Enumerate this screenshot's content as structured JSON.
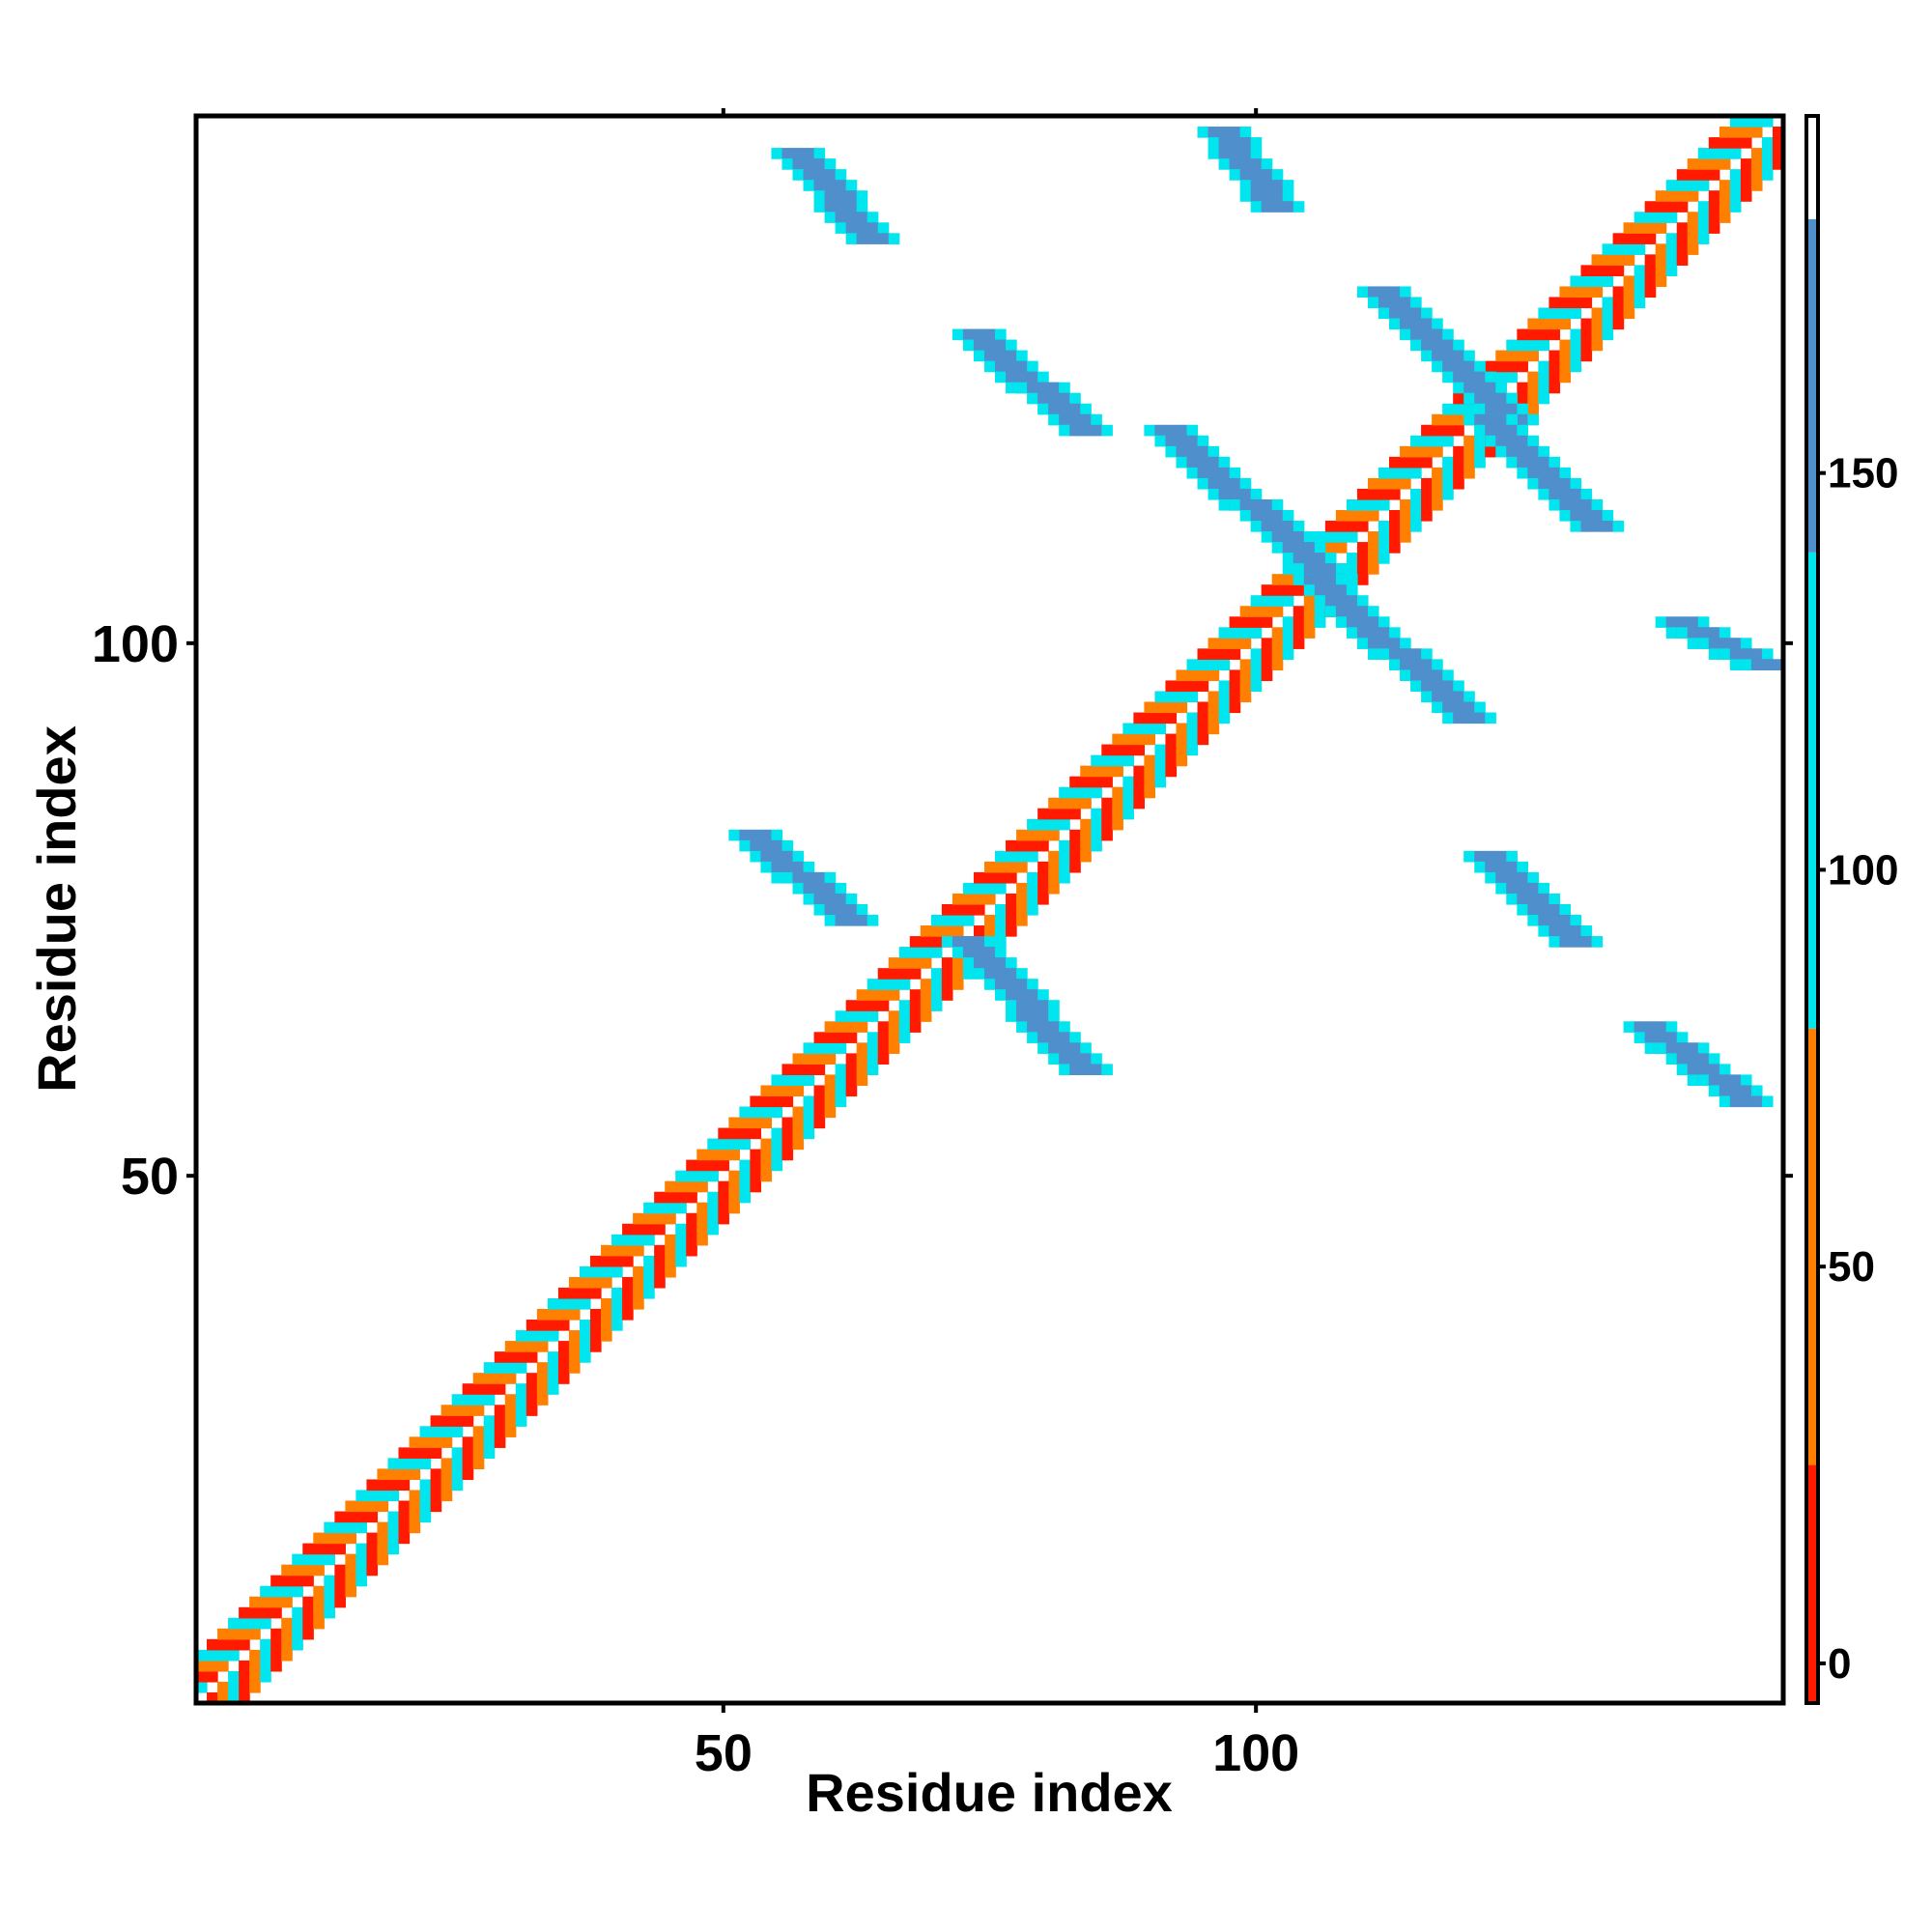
{
  "chart_data": {
    "type": "heatmap",
    "title": "",
    "xlabel": "Residue index",
    "ylabel": "Residue index",
    "xlim": [
      1,
      149
    ],
    "ylim": [
      1,
      149
    ],
    "x_ticks": [
      50,
      100
    ],
    "y_ticks": [
      50,
      100
    ],
    "grid": false,
    "legend": "right",
    "colorbar": {
      "ticks": [
        0,
        50,
        100,
        150
      ],
      "range": [
        -5,
        195
      ],
      "stops": [
        {
          "from": -5,
          "to": 25,
          "color": "#ff1a00"
        },
        {
          "from": 25,
          "to": 80,
          "color": "#ff8000"
        },
        {
          "from": 80,
          "to": 140,
          "color": "#00e5ee"
        },
        {
          "from": 140,
          "to": 182,
          "color": "#4f8fcc"
        },
        {
          "from": 182,
          "to": 195,
          "color": "#ffffff"
        }
      ]
    },
    "diagonal_band": {
      "from": 1,
      "to": 149,
      "pattern": [
        "#ff1a00",
        "#ff8000",
        "#00e5ee"
      ]
    },
    "regions": [
      {
        "x": [
          53,
          62
        ],
        "y": [
          74,
          82
        ],
        "slope": -1,
        "width": 5,
        "value": 120
      },
      {
        "x": [
          73,
          84
        ],
        "y": [
          60,
          72
        ],
        "slope": -1,
        "width": 5,
        "value": 120
      },
      {
        "x": [
          92,
          107
        ],
        "y": [
          106,
          120
        ],
        "slope": -1,
        "width": 5,
        "value": 120
      },
      {
        "x": [
          106,
          120
        ],
        "y": [
          93,
          106
        ],
        "slope": -1,
        "width": 5,
        "value": 120
      },
      {
        "x": [
          112,
          124
        ],
        "y": [
          121,
          133
        ],
        "slope": -1,
        "width": 5,
        "value": 120
      },
      {
        "x": [
          122,
          132
        ],
        "y": [
          111,
          121
        ],
        "slope": -1,
        "width": 5,
        "value": 120
      },
      {
        "x": [
          57,
          64
        ],
        "y": [
          138,
          146
        ],
        "slope": -1,
        "width": 5,
        "value": 120
      },
      {
        "x": [
          74,
          84
        ],
        "y": [
          120,
          129
        ],
        "slope": -1,
        "width": 5,
        "value": 120
      },
      {
        "x": [
          97,
          102
        ],
        "y": [
          141,
          148
        ],
        "slope": -1,
        "width": 5,
        "value": 120
      },
      {
        "x": [
          122,
          130
        ],
        "y": [
          72,
          80
        ],
        "slope": -1,
        "width": 5,
        "value": 120
      },
      {
        "x": [
          137,
          146
        ],
        "y": [
          57,
          64
        ],
        "slope": -1,
        "width": 5,
        "value": 120
      },
      {
        "x": [
          140,
          148
        ],
        "y": [
          98,
          102
        ],
        "slope": -1,
        "width": 5,
        "value": 120
      }
    ]
  }
}
